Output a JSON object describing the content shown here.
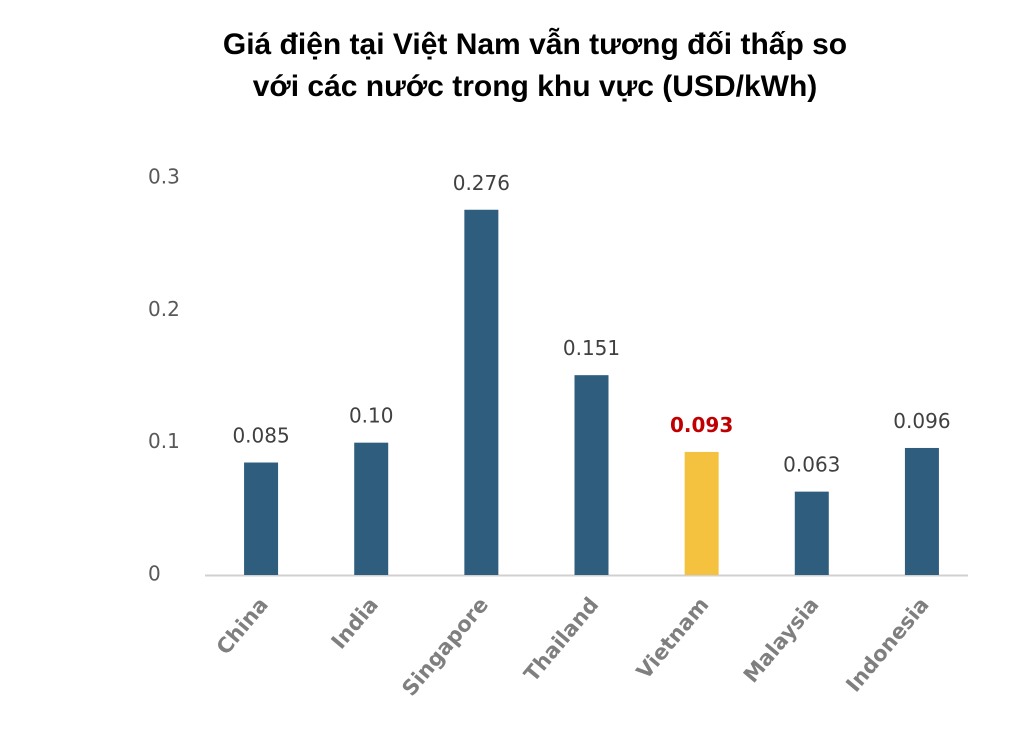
{
  "chart_data": {
    "type": "bar",
    "title": [
      "Giá điện tại Việt Nam vẫn  tương đối thấp so",
      "với các nước trong khu vực (USD/kWh)"
    ],
    "categories": [
      "China",
      "India",
      "Singapore",
      "Thailand",
      "Vietnam",
      "Malaysia",
      "Indonesia"
    ],
    "values": [
      0.085,
      0.1,
      0.276,
      0.151,
      0.093,
      0.063,
      0.096
    ],
    "value_labels": [
      "0.085",
      "0.10",
      "0.276",
      "0.151",
      "0.093",
      "0.063",
      "0.096"
    ],
    "colors": [
      "#2e5d7e",
      "#2e5d7e",
      "#2e5d7e",
      "#2e5d7e",
      "#f4c23e",
      "#2e5d7e",
      "#2e5d7e"
    ],
    "value_label_colors": [
      "#404040",
      "#404040",
      "#404040",
      "#404040",
      "#c00000",
      "#404040",
      "#404040"
    ],
    "ylim": [
      0,
      0.3
    ],
    "yticks": [
      0,
      0.1,
      0.2,
      0.3
    ],
    "grid": false
  }
}
